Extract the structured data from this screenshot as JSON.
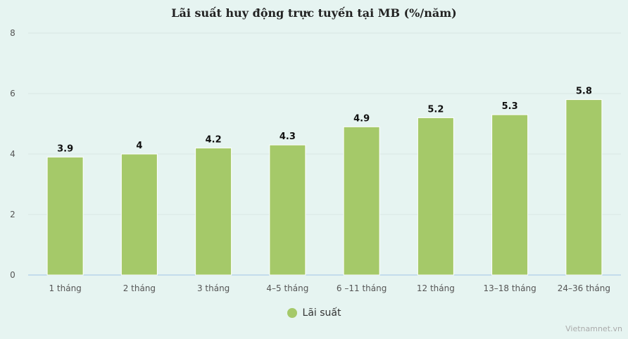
{
  "chart_data": {
    "type": "bar",
    "title": "Lãi suất huy động trực tuyến tại MB (%/năm)",
    "categories": [
      "1 tháng",
      "2 tháng",
      "3 tháng",
      "4–5 tháng",
      "6 –11 tháng",
      "12 tháng",
      "13–18 tháng",
      "24–36 tháng"
    ],
    "series": [
      {
        "name": "Lãi suất",
        "values": [
          3.9,
          4,
          4.2,
          4.3,
          4.9,
          5.2,
          5.3,
          5.8
        ],
        "color": "#a5c969"
      }
    ],
    "ylim": [
      0,
      8
    ],
    "yticks": [
      0,
      2,
      4,
      6,
      8
    ],
    "grid": true,
    "legend_position": "bottom"
  },
  "colors": {
    "background": "#e6f4f1",
    "bar": "#a5c969",
    "grid": "#d8e6e3",
    "axis": "#b7d4ea"
  },
  "watermark": "Vietnamnet.vn"
}
